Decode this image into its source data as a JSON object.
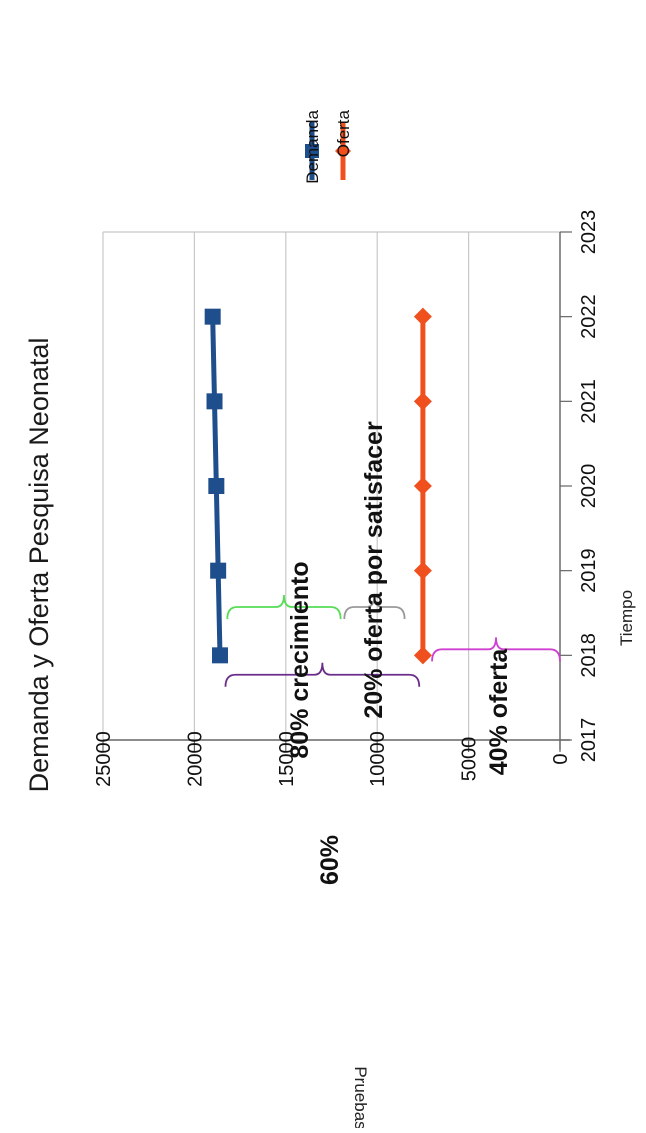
{
  "chart_data": {
    "type": "line",
    "orientation": "rotated-90-clockwise",
    "title": "Demanda y Oferta Pesquisa Neonatal",
    "xlabel": "Tiempo",
    "ylabel": "Pruebas",
    "x": [
      2018,
      2019,
      2020,
      2021,
      2022
    ],
    "x_ticks": [
      "2017",
      "2018",
      "2019",
      "2020",
      "2021",
      "2022",
      "2023"
    ],
    "xlim": [
      2017,
      2023
    ],
    "y_ticks": [
      "0",
      "5000",
      "10000",
      "15000",
      "20000",
      "25000"
    ],
    "ylim": [
      0,
      25000
    ],
    "grid": true,
    "legend_position": "top-right",
    "series": [
      {
        "name": "Demanda",
        "values": [
          18600,
          18700,
          18800,
          18900,
          19000
        ],
        "color": "#1f4e8c",
        "marker": "square"
      },
      {
        "name": "Oferta",
        "values": [
          7500,
          7500,
          7500,
          7500,
          7500
        ],
        "color": "#f0501e",
        "marker": "diamond"
      }
    ],
    "annotations": [
      {
        "text": "60%",
        "color": "#6b2d8a",
        "from": 7700,
        "to": 18300,
        "x_position": 2017.7
      },
      {
        "text": "80% crecimiento",
        "color": "#55dd55",
        "from": 12000,
        "to": 18200,
        "x_position": 2018.5
      },
      {
        "text": "20% oferta por satisfacer",
        "color": "#999999",
        "from": 8500,
        "to": 11800,
        "x_position": 2018.5
      },
      {
        "text": "40% oferta",
        "color": "#d040d0",
        "from": 0,
        "to": 7000,
        "x_position": 2018.0
      }
    ]
  }
}
